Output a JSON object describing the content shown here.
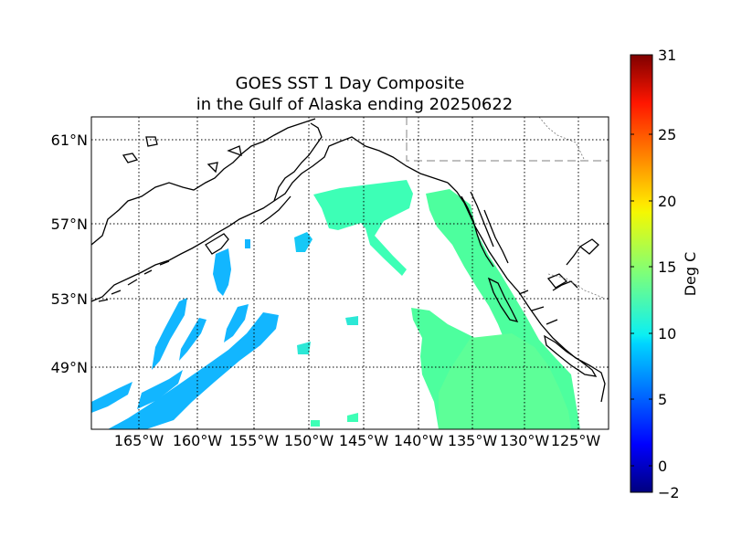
{
  "title": {
    "line1": "GOES SST 1 Day Composite",
    "line2": "in the Gulf of Alaska ending 20250622"
  },
  "map": {
    "lon_labels": [
      "165°W",
      "160°W",
      "155°W",
      "150°W",
      "145°W",
      "140°W",
      "135°W",
      "130°W",
      "125°W"
    ],
    "lat_labels": [
      "61°N",
      "57°N",
      "53°N",
      "49°N"
    ]
  },
  "colorbar": {
    "label": "Deg C",
    "ticks": [
      "31",
      "25",
      "20",
      "15",
      "10",
      "5",
      "0",
      "−2"
    ],
    "range": [
      -2,
      31
    ],
    "colormap": "jet"
  },
  "colors": {
    "sst_cool": "#12b6ff",
    "sst_mid": "#3dffb6",
    "sst_warm": "#6dff8c",
    "coast": "#000000"
  }
}
